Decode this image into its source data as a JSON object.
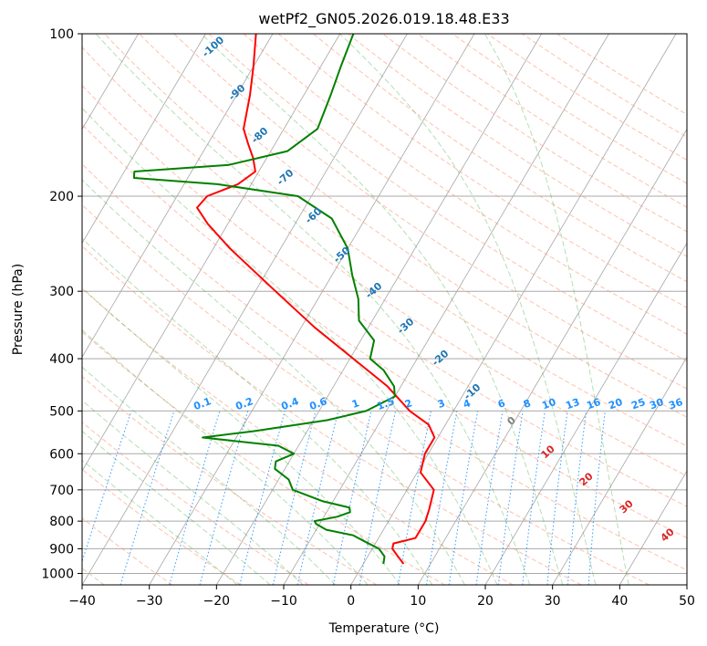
{
  "chart_data": {
    "type": "line",
    "title": "wetPf2_GN05.2026.019.18.48.E33",
    "xlabel": "Temperature (°C)",
    "ylabel": "Pressure (hPa)",
    "xlim": [
      -40,
      50
    ],
    "ylim": [
      1050,
      100
    ],
    "yscale": "log",
    "skew": true,
    "grid": true,
    "x_ticks": [
      -40,
      -30,
      -20,
      -10,
      0,
      10,
      20,
      30,
      40,
      50
    ],
    "y_ticks": [
      100,
      200,
      300,
      400,
      500,
      600,
      700,
      800,
      900,
      1000
    ],
    "series": [
      {
        "role": "temperature",
        "color": "#ff0000",
        "points": [
          {
            "p": 960,
            "t": 6.0
          },
          {
            "p": 930,
            "t": 4.5
          },
          {
            "p": 900,
            "t": 3.0
          },
          {
            "p": 880,
            "t": 2.7
          },
          {
            "p": 860,
            "t": 5.5
          },
          {
            "p": 800,
            "t": 5.5
          },
          {
            "p": 760,
            "t": 5.0
          },
          {
            "p": 700,
            "t": 4.0
          },
          {
            "p": 650,
            "t": 0.5
          },
          {
            "p": 600,
            "t": -0.5
          },
          {
            "p": 560,
            "t": -0.5
          },
          {
            "p": 530,
            "t": -2.5
          },
          {
            "p": 500,
            "t": -6.5
          },
          {
            "p": 450,
            "t": -12.0
          },
          {
            "p": 400,
            "t": -19.5
          },
          {
            "p": 350,
            "t": -28.0
          },
          {
            "p": 300,
            "t": -37.0
          },
          {
            "p": 250,
            "t": -47.5
          },
          {
            "p": 225,
            "t": -53.0
          },
          {
            "p": 210,
            "t": -56.0
          },
          {
            "p": 200,
            "t": -55.5
          },
          {
            "p": 190,
            "t": -52.0
          },
          {
            "p": 180,
            "t": -50.5
          },
          {
            "p": 170,
            "t": -52.0
          },
          {
            "p": 160,
            "t": -54.0
          },
          {
            "p": 150,
            "t": -56.0
          },
          {
            "p": 130,
            "t": -58.0
          },
          {
            "p": 115,
            "t": -60.0
          },
          {
            "p": 100,
            "t": -62.5
          }
        ]
      },
      {
        "role": "dewpoint",
        "color": "#008000",
        "points": [
          {
            "p": 960,
            "t": 3.0
          },
          {
            "p": 930,
            "t": 2.5
          },
          {
            "p": 900,
            "t": 1.0
          },
          {
            "p": 870,
            "t": -2.0
          },
          {
            "p": 850,
            "t": -4.0
          },
          {
            "p": 830,
            "t": -8.5
          },
          {
            "p": 810,
            "t": -10.5
          },
          {
            "p": 800,
            "t": -11.0
          },
          {
            "p": 785,
            "t": -8.0
          },
          {
            "p": 770,
            "t": -6.5
          },
          {
            "p": 755,
            "t": -7.0
          },
          {
            "p": 735,
            "t": -11.5
          },
          {
            "p": 700,
            "t": -17.0
          },
          {
            "p": 670,
            "t": -18.5
          },
          {
            "p": 640,
            "t": -21.5
          },
          {
            "p": 620,
            "t": -22.0
          },
          {
            "p": 600,
            "t": -20.0
          },
          {
            "p": 580,
            "t": -23.0
          },
          {
            "p": 560,
            "t": -35.0
          },
          {
            "p": 545,
            "t": -28.0
          },
          {
            "p": 520,
            "t": -18.0
          },
          {
            "p": 500,
            "t": -13.0
          },
          {
            "p": 470,
            "t": -10.0
          },
          {
            "p": 450,
            "t": -11.0
          },
          {
            "p": 420,
            "t": -14.0
          },
          {
            "p": 400,
            "t": -17.0
          },
          {
            "p": 370,
            "t": -18.0
          },
          {
            "p": 340,
            "t": -22.0
          },
          {
            "p": 310,
            "t": -24.0
          },
          {
            "p": 280,
            "t": -27.0
          },
          {
            "p": 250,
            "t": -30.0
          },
          {
            "p": 220,
            "t": -35.0
          },
          {
            "p": 200,
            "t": -42.0
          },
          {
            "p": 190,
            "t": -55.0
          },
          {
            "p": 185,
            "t": -68.0
          },
          {
            "p": 180,
            "t": -68.5
          },
          {
            "p": 175,
            "t": -55.0
          },
          {
            "p": 165,
            "t": -47.5
          },
          {
            "p": 150,
            "t": -45.0
          },
          {
            "p": 130,
            "t": -46.0
          },
          {
            "p": 115,
            "t": -47.0
          },
          {
            "p": 100,
            "t": -48.0
          }
        ]
      }
    ],
    "dry_adiabat_labels": [
      "-100",
      "-90",
      "-80",
      "-70",
      "-60",
      "-50",
      "-40",
      "-30",
      "-20",
      "-10"
    ],
    "mixing_ratio_labels": [
      "0.1",
      "0.2",
      "0.4",
      "0.6",
      "1",
      "1.5",
      "2",
      "3",
      "4",
      "6",
      "8",
      "10",
      "13",
      "16",
      "20",
      "25",
      "30",
      "36"
    ],
    "mixing_ratio_values": [
      0.1,
      0.2,
      0.4,
      0.6,
      1,
      1.5,
      2,
      3,
      4,
      6,
      8,
      10,
      13,
      16,
      20,
      25,
      30,
      36
    ],
    "moist_adiabat_labels": [
      "0",
      "10",
      "20",
      "30",
      "40"
    ],
    "colors": {
      "dry_adiabat": "#ff8c69",
      "moist_adiabat": "#2ca02c",
      "mixing_ratio": "#1e90ff",
      "isotherm": "#808080",
      "isobar": "#a9a9a9"
    }
  }
}
